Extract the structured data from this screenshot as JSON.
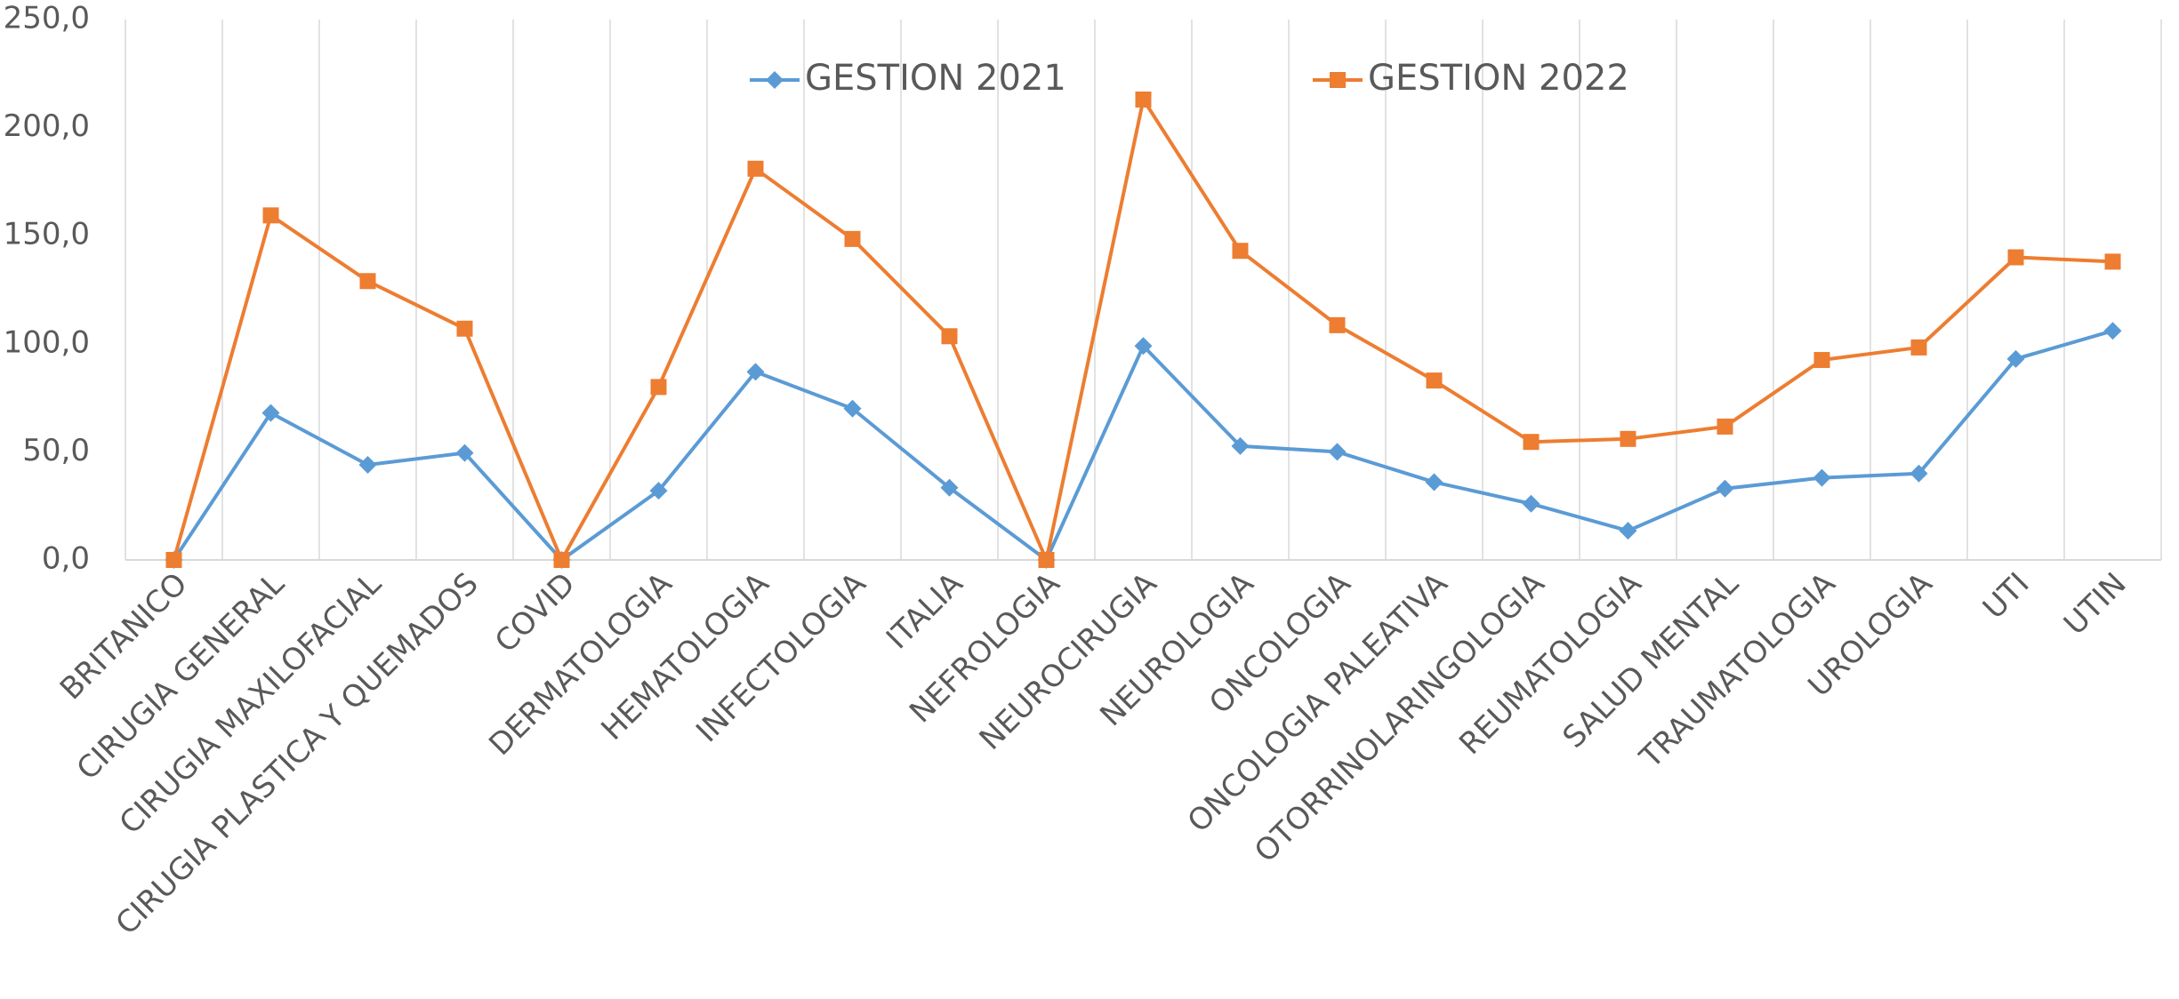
{
  "chart_data": {
    "type": "line",
    "categories": [
      "BRITANICO",
      "CIRUGIA GENERAL",
      "CIRUGIA MAXILOFACIAL",
      "CIRUGIA PLASTICA Y QUEMADOS",
      "COVID",
      "DERMATOLOGIA",
      "HEMATOLOGIA",
      "INFECTOLOGIA",
      "ITALIA",
      "NEFROLOGIA",
      "NEUROCIRUGIA",
      "NEUROLOGIA",
      "ONCOLOGIA",
      "ONCOLOGIA PALEATIVA",
      "OTORRINOLARINGOLOGIA",
      "REUMATOLOGIA",
      "SALUD MENTAL",
      "TRAUMATOLOGIA",
      "UROLOGIA",
      "UTI",
      "UTIN"
    ],
    "series": [
      {
        "name": "GESTION 2021",
        "color": "#5b9bd5",
        "marker": "diamond",
        "values": [
          0,
          68,
          44,
          49.5,
          0,
          32,
          87,
          70,
          33.4,
          0,
          99,
          52.7,
          50,
          36,
          26,
          13.5,
          33,
          38,
          40,
          93,
          106
        ]
      },
      {
        "name": "GESTION 2022",
        "color": "#ed7d31",
        "marker": "square",
        "values": [
          0,
          159.4,
          129,
          107,
          0,
          80,
          181,
          148.5,
          103.5,
          0,
          213,
          143,
          108.6,
          83,
          54.6,
          56,
          61.7,
          92.5,
          98.3,
          140,
          138
        ]
      }
    ],
    "ylim": [
      0,
      250
    ],
    "yticks": [
      {
        "value": 0,
        "label": "0,0"
      },
      {
        "value": 50,
        "label": "50,0"
      },
      {
        "value": 100,
        "label": "100,0"
      },
      {
        "value": 150,
        "label": "150,0"
      },
      {
        "value": 200,
        "label": "200,0"
      },
      {
        "value": 250,
        "label": "250,0"
      }
    ],
    "grid": true,
    "legend": "top"
  }
}
